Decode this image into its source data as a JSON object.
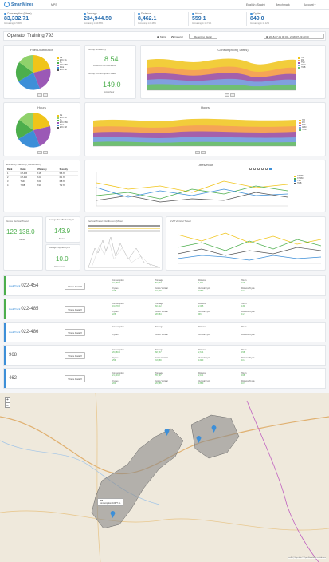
{
  "app": {
    "name": "SmartMines",
    "nav_first": "MPS"
  },
  "topnav": {
    "english": "English (Spain)",
    "benchmark": "Benchmark",
    "account": "Account ▾"
  },
  "kpis": [
    {
      "label": "Consumption (Litres)",
      "value": "83,332.71",
      "sub": "Increasing in 5.69%"
    },
    {
      "label": "Tonnage",
      "value": "234,944.50",
      "sub": "Increasing in 10.88%"
    },
    {
      "label": "Distance",
      "value": "8,462.1",
      "sub": "Increasing in 8.28%"
    },
    {
      "label": "Hours",
      "value": "559.1",
      "sub": "Increasing in 10.71%"
    },
    {
      "label": "Cycles",
      "value": "849.0",
      "sub": "Increasing in 11.12%"
    }
  ],
  "page": {
    "title": "Operator Training 793",
    "radio_metric": "Metric",
    "radio_imperial": "Imperial",
    "reporting_button": "Reporting Metric",
    "date_range": "2018-07-01 00:00 - 2018-07-09 23:00"
  },
  "fuel": {
    "title": "Fuel Distribution",
    "legend": [
      "DE",
      "EXC-TG",
      "NL",
      "EXC-SBC",
      "IDLE",
      "EXC-TM"
    ]
  },
  "efficiency": {
    "group_label": "Group Efficiency",
    "group_value": "8.54",
    "group_unit": "Litres/100 ton kilometres",
    "consumption_label": "Group Consumption Rate",
    "consumption_value": "149.0",
    "consumption_unit": "Litres/hour"
  },
  "consumption_chart": {
    "title": "Consumption ( Litres)",
    "legend": [
      "793",
      "460",
      "TSD",
      "AMM",
      "793B"
    ]
  },
  "hours_pie": {
    "title": "Hours",
    "legend": [
      "DE",
      "EXC-TG",
      "NL",
      "EXC-SBC",
      "IDLE",
      "EXC-TM"
    ]
  },
  "hours_chart": {
    "title": "Hours",
    "legend": [
      "793",
      "460",
      "TSD",
      "AMM",
      "793B"
    ]
  },
  "ranking": {
    "title": "Efficiency Ranking ( Litres/Hour)",
    "columns": [
      "Rank",
      "Name",
      "Efficiency",
      "Security"
    ],
    "rows": [
      [
        "1",
        "CT-465",
        "8.18",
        "5.6 %"
      ],
      [
        "2",
        "CT-460",
        "8.24",
        "6.1 %"
      ],
      [
        "3",
        "TSD",
        "8.61",
        "6.8 %"
      ],
      [
        "4",
        "793B",
        "8.90",
        "7.2 %"
      ]
    ]
  },
  "lph_chart": {
    "title": "Litres/Hour",
    "legend": [
      "CT-465",
      "CT-460",
      "TSD",
      "793B"
    ]
  },
  "cards": {
    "gross_title": "Gross Vertical Travel",
    "gross_value": "122,138.0",
    "gross_unit": "Meter",
    "avg_cycle_label": "Average Per Effective Cycle",
    "avg_cycle_value": "143.9",
    "avg_cycle_unit": "Meter",
    "avg_payload_label": "Average Payload Cycle",
    "avg_payload_value": "10.0",
    "avg_payload_unit": "kilometers"
  },
  "vt_distribution": {
    "title": "Vertical Travel Distribution (Meter)"
  },
  "gvt_chart": {
    "title": "GVM Vertical Travel"
  },
  "trucks": [
    {
      "prefix": "Haul Truck",
      "name": "022-454",
      "accent": "#4cae4c",
      "stats": [
        [
          "Consumption",
          "16,768.3"
        ],
        [
          "Tonnage",
          "50,097"
        ],
        [
          "Distance",
          "1,681"
        ],
        [
          "Hours",
          "103"
        ],
        [
          "Cycles",
          "168"
        ],
        [
          "Grove Vertical",
          "32,779"
        ],
        [
          "Vertical/Cycle",
          "195.0"
        ],
        [
          "Distance/Cycle",
          "10.0"
        ]
      ]
    },
    {
      "prefix": "Haul Truck",
      "name": "022-485",
      "accent": "#4cae4c",
      "stats": [
        [
          "Consumption",
          "19,078.8"
        ],
        [
          "Tonnage",
          "60,312"
        ],
        [
          "Distance",
          "2,065"
        ],
        [
          "Hours",
          "130"
        ],
        [
          "Cycles",
          "225"
        ],
        [
          "Grove Vertical",
          "28,684"
        ],
        [
          "Vertical/Cycle",
          "98.0"
        ],
        [
          "Distance/Cycle",
          "9.2"
        ]
      ]
    },
    {
      "prefix": "Haul Truck",
      "name": "022-486",
      "accent": "#3d8fd8",
      "stats": [
        [
          "Consumption",
          ""
        ],
        [
          "Tonnage",
          ""
        ],
        [
          "Distance",
          ""
        ],
        [
          "Hours",
          ""
        ],
        [
          "Cycles",
          "",
          ""
        ],
        [
          "Grove Vertical",
          ""
        ],
        [
          "Vertical/Cycle",
          ""
        ],
        [
          "Distance/Cycle",
          ""
        ]
      ]
    },
    {
      "prefix": "",
      "name": "968",
      "accent": "#3d8fd8",
      "stats": [
        [
          "Consumption",
          "26,080.4"
        ],
        [
          "Tonnage",
          "68,737"
        ],
        [
          "Distance",
          "2,614"
        ],
        [
          "Hours",
          "158"
        ],
        [
          "Cycles",
          "256"
        ],
        [
          "Grove Vertical",
          "33,689"
        ],
        [
          "Vertical/Cycle",
          "132.0"
        ],
        [
          "Distance/Cycle",
          "10.2"
        ]
      ]
    },
    {
      "prefix": "",
      "name": "462",
      "accent": "#3d8fd8",
      "stats": [
        [
          "Consumption",
          "21,404.8"
        ],
        [
          "Tonnage",
          "55,797"
        ],
        [
          "Distance",
          "2,101"
        ],
        [
          "Hours",
          "168"
        ],
        [
          "Cycles",
          "200"
        ],
        [
          "Grove Vertical",
          "26,985"
        ],
        [
          "Vertical/Cycle",
          "135.0"
        ],
        [
          "Distance/Cycle",
          "10.5"
        ]
      ]
    }
  ],
  "share_label": "Share Data ▾",
  "map": {
    "popup_title": "462",
    "popup_text": "Consumption: 16977.6L",
    "attribution": "Leaflet | Map data © OpenStreetMap contributors"
  }
}
